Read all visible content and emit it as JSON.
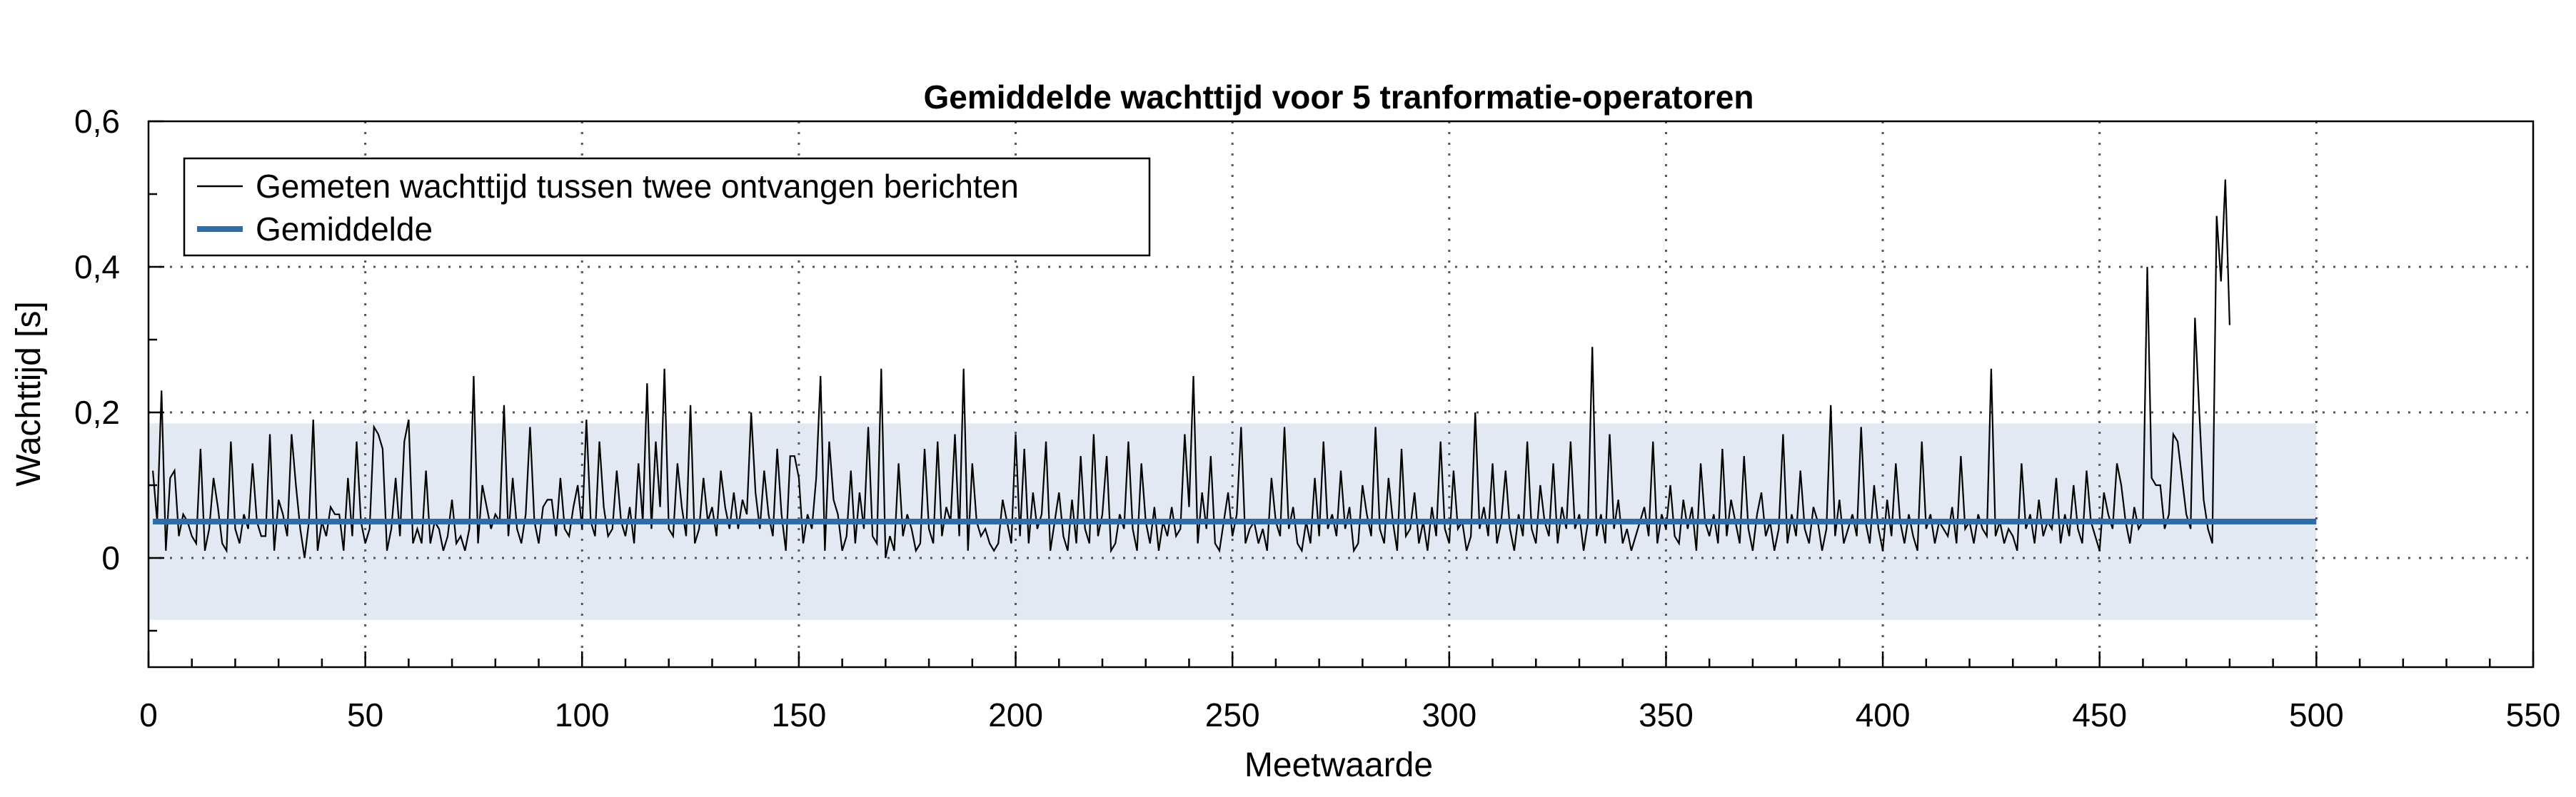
{
  "chart_data": {
    "type": "line",
    "title": "Gemiddelde wachttijd voor 5 tranformatie-operatoren",
    "xlabel": "Meetwaarde",
    "ylabel": "Wachttijd [s]",
    "xlim": [
      0,
      550
    ],
    "ylim": [
      -0.15,
      0.6
    ],
    "x_ticks": [
      0,
      50,
      100,
      150,
      200,
      250,
      300,
      350,
      400,
      450,
      500,
      550
    ],
    "x_tick_labels": [
      "0",
      "50",
      "100",
      "150",
      "200",
      "250",
      "300",
      "350",
      "400",
      "450",
      "500",
      "550"
    ],
    "y_ticks": [
      0,
      0.2,
      0.4,
      0.6
    ],
    "y_tick_labels": [
      "0",
      "0,2",
      "0,4",
      "0,6"
    ],
    "grid": true,
    "legend_position": "top-left",
    "series": [
      {
        "name": "Gemeten wachttijd tussen twee ontvangen berichten",
        "color": "#000000",
        "x_start": 1,
        "values": [
          0.12,
          0.05,
          0.23,
          0.01,
          0.11,
          0.12,
          0.03,
          0.06,
          0.05,
          0.03,
          0.02,
          0.15,
          0.01,
          0.04,
          0.11,
          0.07,
          0.02,
          0.01,
          0.16,
          0.04,
          0.02,
          0.06,
          0.04,
          0.13,
          0.05,
          0.03,
          0.03,
          0.17,
          0.01,
          0.08,
          0.06,
          0.03,
          0.17,
          0.1,
          0.04,
          0,
          0.05,
          0.19,
          0.01,
          0.05,
          0.03,
          0.07,
          0.06,
          0.06,
          0.01,
          0.11,
          0.03,
          0.16,
          0.05,
          0.02,
          0.04,
          0.18,
          0.17,
          0.15,
          0.01,
          0.04,
          0.11,
          0.03,
          0.16,
          0.19,
          0.02,
          0.04,
          0.02,
          0.12,
          0.02,
          0.05,
          0.04,
          0.01,
          0.03,
          0.08,
          0.02,
          0.03,
          0.01,
          0.04,
          0.25,
          0.02,
          0.1,
          0.07,
          0.04,
          0.06,
          0.05,
          0.21,
          0.03,
          0.11,
          0.04,
          0.02,
          0.06,
          0.18,
          0.05,
          0.02,
          0.07,
          0.08,
          0.08,
          0.03,
          0.11,
          0.04,
          0.03,
          0.07,
          0.1,
          0.04,
          0.19,
          0.05,
          0.03,
          0.16,
          0.07,
          0.03,
          0.04,
          0.12,
          0.05,
          0.03,
          0.07,
          0.02,
          0.13,
          0.05,
          0.24,
          0.04,
          0.16,
          0.07,
          0.26,
          0.04,
          0.03,
          0.13,
          0.07,
          0.03,
          0.21,
          0.02,
          0.04,
          0.11,
          0.05,
          0.07,
          0.03,
          0.12,
          0.07,
          0.04,
          0.09,
          0.04,
          0.08,
          0.06,
          0.2,
          0.09,
          0.04,
          0.12,
          0.06,
          0.03,
          0.15,
          0.06,
          0.01,
          0.14,
          0.14,
          0.11,
          0.02,
          0.06,
          0.04,
          0.11,
          0.25,
          0.01,
          0.16,
          0.08,
          0.06,
          0.01,
          0.03,
          0.12,
          0.02,
          0.09,
          0.04,
          0.18,
          0.03,
          0.02,
          0.26,
          0,
          0.03,
          0.01,
          0.13,
          0.03,
          0.06,
          0.04,
          0.01,
          0.02,
          0.15,
          0.04,
          0.02,
          0.16,
          0.03,
          0.07,
          0.05,
          0.17,
          0.03,
          0.26,
          0.01,
          0.13,
          0.05,
          0.03,
          0.04,
          0.02,
          0.01,
          0.02,
          0.08,
          0.05,
          0.02,
          0.17,
          0.03,
          0.15,
          0.02,
          0.09,
          0.04,
          0.06,
          0.16,
          0.01,
          0.05,
          0.09,
          0.03,
          0.01,
          0.08,
          0.02,
          0.14,
          0.04,
          0.02,
          0.17,
          0.03,
          0.06,
          0.14,
          0.01,
          0.02,
          0.06,
          0.04,
          0.16,
          0.04,
          0.01,
          0.13,
          0.05,
          0.02,
          0.07,
          0.01,
          0.05,
          0.03,
          0.07,
          0.03,
          0.04,
          0.17,
          0.07,
          0.25,
          0.02,
          0.09,
          0.04,
          0.14,
          0.02,
          0.01,
          0.05,
          0.09,
          0.03,
          0.06,
          0.18,
          0.02,
          0.04,
          0.05,
          0.02,
          0.04,
          0.01,
          0.11,
          0.05,
          0.03,
          0.18,
          0.04,
          0.07,
          0.02,
          0.01,
          0.05,
          0.02,
          0.11,
          0.03,
          0.16,
          0.04,
          0.06,
          0.03,
          0.12,
          0.04,
          0.07,
          0.01,
          0.02,
          0.1,
          0.06,
          0.03,
          0.18,
          0.04,
          0.02,
          0.11,
          0.05,
          0.01,
          0.15,
          0.03,
          0.04,
          0.09,
          0.02,
          0.05,
          0.01,
          0.07,
          0.03,
          0.16,
          0.04,
          0.02,
          0.12,
          0.04,
          0.05,
          0.01,
          0.03,
          0.2,
          0.04,
          0.07,
          0.03,
          0.13,
          0.02,
          0.05,
          0.12,
          0.04,
          0.01,
          0.06,
          0.03,
          0.16,
          0.04,
          0.02,
          0.1,
          0.05,
          0.03,
          0.13,
          0.02,
          0.07,
          0.04,
          0.16,
          0.04,
          0.06,
          0.01,
          0.05,
          0.29,
          0.03,
          0.06,
          0.02,
          0.17,
          0.04,
          0.08,
          0.02,
          0.04,
          0.01,
          0.03,
          0.05,
          0.07,
          0.03,
          0.16,
          0.02,
          0.06,
          0.04,
          0.1,
          0.03,
          0.02,
          0.08,
          0.04,
          0.07,
          0.01,
          0.13,
          0.05,
          0.03,
          0.06,
          0.02,
          0.15,
          0.03,
          0.08,
          0.05,
          0.02,
          0.14,
          0.04,
          0.01,
          0.06,
          0.09,
          0.03,
          0.05,
          0.01,
          0.04,
          0.17,
          0.02,
          0.06,
          0.03,
          0.12,
          0.04,
          0.02,
          0.07,
          0.05,
          0.01,
          0.04,
          0.21,
          0.03,
          0.08,
          0.02,
          0.04,
          0.06,
          0.03,
          0.18,
          0.05,
          0.02,
          0.1,
          0.04,
          0.01,
          0.08,
          0.03,
          0.13,
          0.05,
          0.02,
          0.06,
          0.03,
          0.01,
          0.16,
          0.04,
          0.06,
          0.02,
          0.05,
          0.04,
          0.03,
          0.07,
          0.02,
          0.14,
          0.04,
          0.05,
          0.02,
          0.06,
          0.04,
          0.03,
          0.26,
          0.03,
          0.05,
          0.02,
          0.04,
          0.03,
          0.01,
          0.13,
          0.04,
          0.06,
          0.02,
          0.08,
          0.03,
          0.05,
          0.04,
          0.11,
          0.02,
          0.06,
          0.03,
          0.1,
          0.04,
          0.02,
          0.12,
          0.05,
          0.03,
          0.01,
          0.09,
          0.06,
          0.04,
          0.13,
          0.1,
          0.05,
          0.02,
          0.07,
          0.04,
          0.05,
          0.4,
          0.11,
          0.1,
          0.1,
          0.04,
          0.06,
          0.17,
          0.16,
          0.11,
          0.06,
          0.04,
          0.33,
          0.2,
          0.08,
          0.04,
          0.02,
          0.47,
          0.38,
          0.52,
          0.32
        ]
      },
      {
        "name": "Gemiddelde",
        "color": "#2f6ca8",
        "x": [
          1,
          500
        ],
        "values": [
          0.05,
          0.05
        ]
      }
    ],
    "band": {
      "x": [
        0,
        500
      ],
      "y": [
        -0.085,
        0.185
      ],
      "color": "#e2e9f3"
    }
  }
}
